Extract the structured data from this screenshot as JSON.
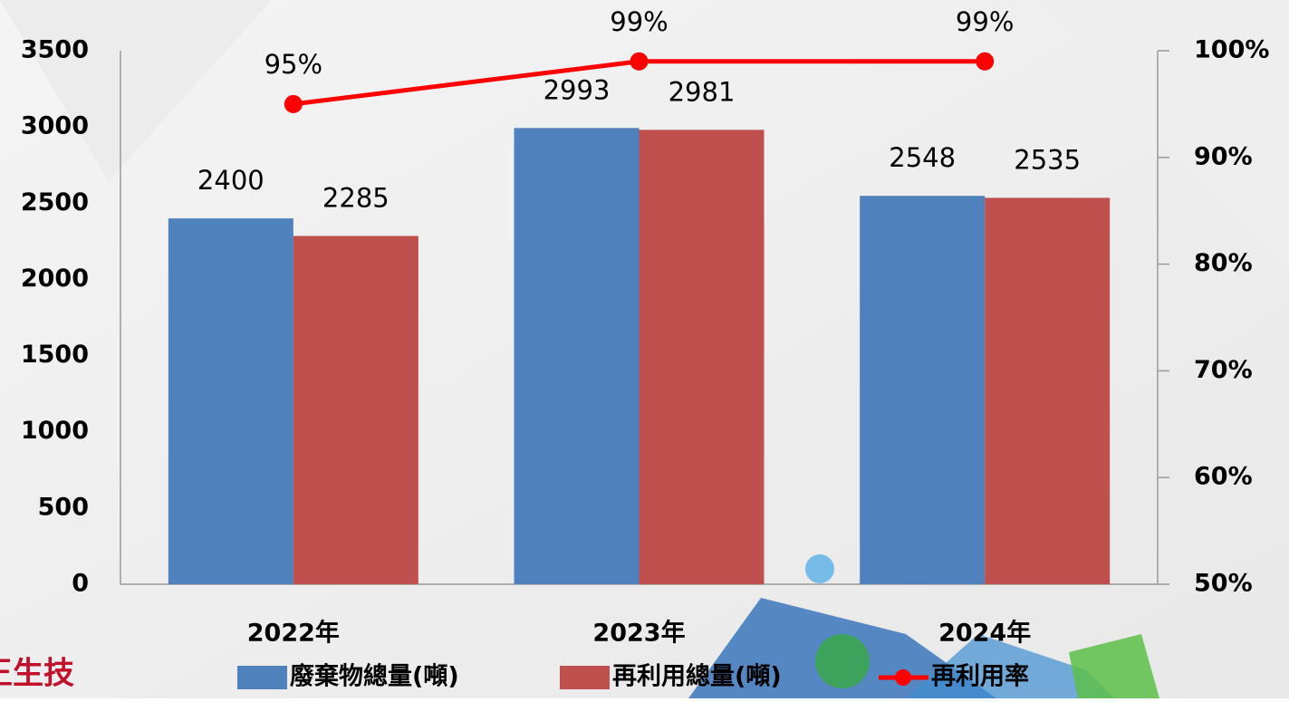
{
  "chart_data": {
    "type": "bar_line",
    "categories": [
      "2022年",
      "2023年",
      "2024年"
    ],
    "series": [
      {
        "name": "廢棄物總量(噸)",
        "color": "#4f81bd",
        "type": "bar",
        "values": [
          2400,
          2993,
          2548
        ]
      },
      {
        "name": "再利用總量(噸)",
        "color": "#c0504d",
        "type": "bar",
        "values": [
          2285,
          2981,
          2535
        ]
      },
      {
        "name": "再利用率",
        "color": "#ff0000",
        "type": "line",
        "axis": "y2",
        "values": [
          95,
          99,
          99
        ],
        "value_labels": [
          "95%",
          "99%",
          "99%"
        ]
      }
    ],
    "ylim": [
      0,
      3500
    ],
    "yticks": [
      0,
      500,
      1000,
      1500,
      2000,
      2500,
      3000,
      3500
    ],
    "y2lim": [
      50,
      100
    ],
    "y2ticks": [
      {
        "value": 50,
        "label": "50%"
      },
      {
        "value": 60,
        "label": "60%"
      },
      {
        "value": 70,
        "label": "70%"
      },
      {
        "value": 80,
        "label": "80%"
      },
      {
        "value": 90,
        "label": "90%"
      },
      {
        "value": 100,
        "label": "100%"
      }
    ],
    "legend": "bottom",
    "watermark": "王生技"
  }
}
